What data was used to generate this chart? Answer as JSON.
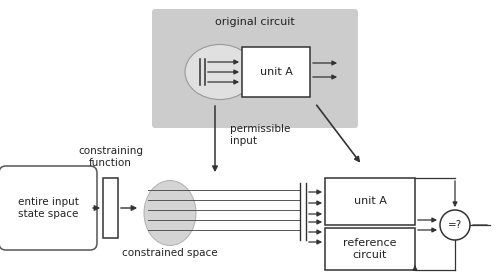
{
  "bg_color": "#ffffff",
  "gray_bg": "#cccccc",
  "text_color": "#222222",
  "title": "original circuit",
  "label_constraining": "constraining\nfunction",
  "label_permissible": "permissible\ninput",
  "label_constrained": "constrained space",
  "label_entire": "entire input\nstate space",
  "label_unitA_top": "unit A",
  "label_unitA_bot": "unit A",
  "label_ref": "reference\ncircuit",
  "label_eq": "=?"
}
